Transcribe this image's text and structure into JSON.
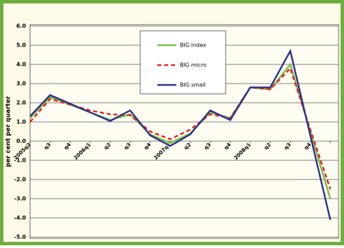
{
  "chart_data": {
    "type": "line",
    "y_label": "per cent per quarter",
    "categories": [
      "2005q2",
      "q3",
      "q4",
      "2006q1",
      "q2",
      "q3",
      "q4",
      "2007q1",
      "q2",
      "q3",
      "q4",
      "2008q1",
      "q2",
      "q3",
      "q4",
      null
    ],
    "series": [
      {
        "name": "BIG index",
        "color": "#77c043",
        "dash": false,
        "values": [
          1.2,
          2.3,
          1.9,
          1.5,
          1.1,
          1.4,
          0.35,
          -0.1,
          0.4,
          1.5,
          1.2,
          2.8,
          2.7,
          4.0,
          0.5,
          -3.0
        ]
      },
      {
        "name": "BIG micro",
        "color": "#e8221b",
        "dash": true,
        "values": [
          1.0,
          2.2,
          1.9,
          1.6,
          1.4,
          1.35,
          0.5,
          0.1,
          0.6,
          1.4,
          1.2,
          2.8,
          2.7,
          3.8,
          0.6,
          -2.5
        ]
      },
      {
        "name": "BIG small",
        "color": "#2e3192",
        "dash": false,
        "values": [
          1.3,
          2.4,
          1.95,
          1.5,
          1.05,
          1.6,
          0.3,
          -0.25,
          0.35,
          1.6,
          1.1,
          2.8,
          2.8,
          4.7,
          0.3,
          -4.1
        ]
      }
    ],
    "ylim": [
      -5,
      6
    ],
    "yticks": [
      {
        "value": -5,
        "label": "-5.0"
      },
      {
        "value": -4,
        "label": "-4.0"
      },
      {
        "value": -3,
        "label": "-3.0"
      },
      {
        "value": -2,
        "label": "-2.0"
      },
      {
        "value": -1,
        "label": "-1.0"
      },
      {
        "value": 0,
        "label": "0.0"
      },
      {
        "value": 1,
        "label": "1.0"
      },
      {
        "value": 2,
        "label": "2.0"
      },
      {
        "value": 3,
        "label": "3.0"
      },
      {
        "value": 4,
        "label": "4.0"
      },
      {
        "value": 5,
        "label": "5.0"
      },
      {
        "value": 6,
        "label": "6.0"
      }
    ],
    "grid": true
  }
}
